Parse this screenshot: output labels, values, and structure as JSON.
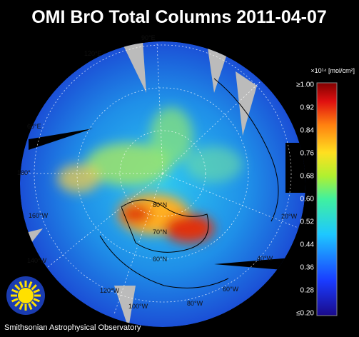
{
  "title": "OMI BrO Total Columns 2011-04-07",
  "colorbar": {
    "unit": "×10¹⁴ [mol/cm²]",
    "ticks": [
      "≥1.00",
      "0.92",
      "0.84",
      "0.76",
      "0.68",
      "0.60",
      "0.52",
      "0.44",
      "0.36",
      "0.28",
      "≤0.20"
    ]
  },
  "map_labels": [
    "120°E",
    "90°E",
    "60°E",
    "180°",
    "160°W",
    "140°W",
    "120°W",
    "100°W",
    "80°W",
    "60°W",
    "40°W",
    "20°W",
    "80°N",
    "70°N",
    "60°N"
  ],
  "footer": "Smithsonian Astrophysical Observatory"
}
